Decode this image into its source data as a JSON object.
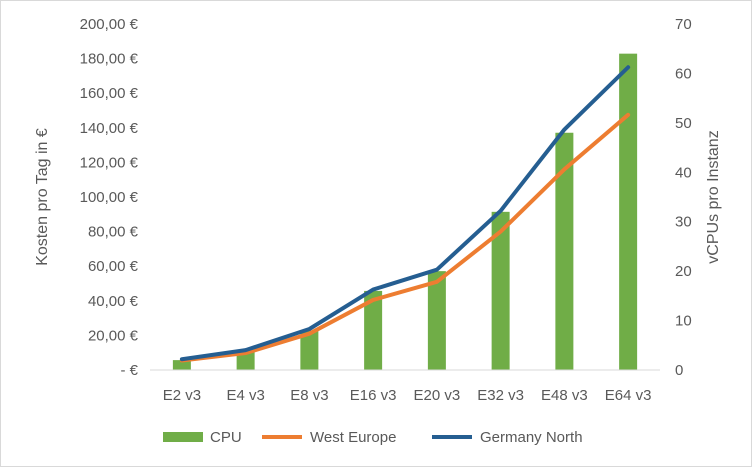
{
  "chart_data": {
    "type": "bar",
    "categories": [
      "E2 v3",
      "E4 v3",
      "E8 v3",
      "E16 v3",
      "E20 v3",
      "E32 v3",
      "E48 v3",
      "E64 v3"
    ],
    "series": [
      {
        "name": "CPU",
        "type": "bar",
        "axis": "right",
        "color": "#70ad47",
        "values": [
          2,
          4,
          8,
          16,
          20,
          32,
          48,
          64
        ]
      },
      {
        "name": "West Europe",
        "type": "line",
        "axis": "left",
        "color": "#ed7d31",
        "values": [
          5.5,
          9.8,
          21.0,
          40.5,
          51.0,
          80.0,
          116.0,
          147.5
        ]
      },
      {
        "name": "Germany North",
        "type": "line",
        "axis": "left",
        "color": "#255e91",
        "values": [
          6.2,
          11.5,
          23.7,
          46.5,
          58.0,
          92.0,
          139.0,
          175.0
        ]
      }
    ],
    "ylabel": "Kosten pro Tag in €",
    "y2label": "vCPUs pro Instanz",
    "ylim": [
      0,
      200
    ],
    "y2lim": [
      0,
      70
    ],
    "yticks": [
      "-  €",
      "20,00 €",
      "40,00 €",
      "60,00 €",
      "80,00 €",
      "100,00 €",
      "120,00 €",
      "140,00 €",
      "160,00 €",
      "180,00 €",
      "200,00 €"
    ],
    "y2ticks": [
      "0",
      "10",
      "20",
      "30",
      "40",
      "50",
      "60",
      "70"
    ],
    "grid": false,
    "legend": "bottom"
  }
}
